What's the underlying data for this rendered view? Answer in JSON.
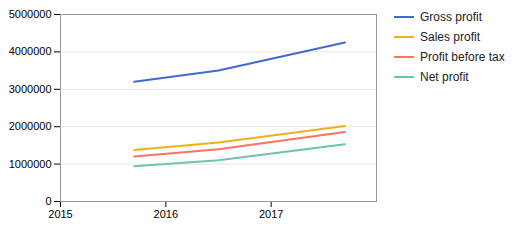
{
  "chart_data": {
    "type": "line",
    "x": [
      2015.7,
      2016.5,
      2017.7
    ],
    "series": [
      {
        "name": "Gross profit",
        "values": [
          3200000,
          3500000,
          4250000
        ]
      },
      {
        "name": "Sales profit",
        "values": [
          1380000,
          1580000,
          2020000
        ]
      },
      {
        "name": "Profit before tax",
        "values": [
          1200000,
          1400000,
          1860000
        ]
      },
      {
        "name": "Net profit",
        "values": [
          940000,
          1100000,
          1530000
        ]
      }
    ],
    "xlim": [
      2015,
      2018
    ],
    "xticks": [
      2015,
      2016,
      2017
    ],
    "ylim": [
      0,
      5000000
    ],
    "yticks": [
      0,
      1000000,
      2000000,
      3000000,
      4000000,
      5000000
    ],
    "grid": true,
    "legend": "right"
  }
}
